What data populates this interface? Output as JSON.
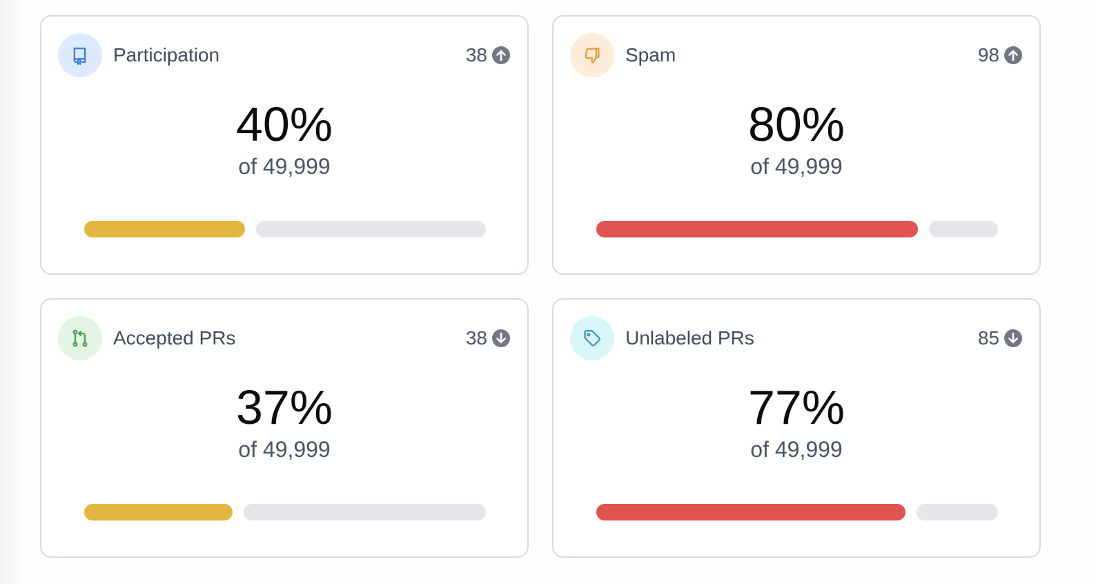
{
  "colors": {
    "yellow_bar": "#e2b640",
    "red_bar": "#df5351",
    "track": "#e5e6ea",
    "trend_icon_bg": "#707884"
  },
  "cards": [
    {
      "title": "Participation",
      "count": "38",
      "trend": "up",
      "trend_icon": "arrow-up-circle-icon",
      "icon": "book-icon",
      "icon_bg": "#dde9fd",
      "icon_color": "#3d7fe6",
      "percent": "40%",
      "of_total": "of 49,999",
      "fill_fraction": 0.4,
      "fill_color": "#e2b640"
    },
    {
      "title": "Spam",
      "count": "98",
      "trend": "up",
      "trend_icon": "arrow-up-circle-icon",
      "icon": "thumbs-down-icon",
      "icon_bg": "#fdecd9",
      "icon_color": "#ee9a3c",
      "percent": "80%",
      "of_total": "of 49,999",
      "fill_fraction": 0.8,
      "fill_color": "#df5351"
    },
    {
      "title": "Accepted PRs",
      "count": "38",
      "trend": "down",
      "trend_icon": "arrow-down-circle-icon",
      "icon": "pull-request-icon",
      "icon_bg": "#e2f5e4",
      "icon_color": "#4f9a5a",
      "percent": "37%",
      "of_total": "of 49,999",
      "fill_fraction": 0.37,
      "fill_color": "#e2b640"
    },
    {
      "title": "Unlabeled PRs",
      "count": "85",
      "trend": "down",
      "trend_icon": "arrow-down-circle-icon",
      "icon": "tag-icon",
      "icon_bg": "#d8f6fa",
      "icon_color": "#3f9dbb",
      "percent": "77%",
      "of_total": "of 49,999",
      "fill_fraction": 0.77,
      "fill_color": "#df5351"
    }
  ]
}
